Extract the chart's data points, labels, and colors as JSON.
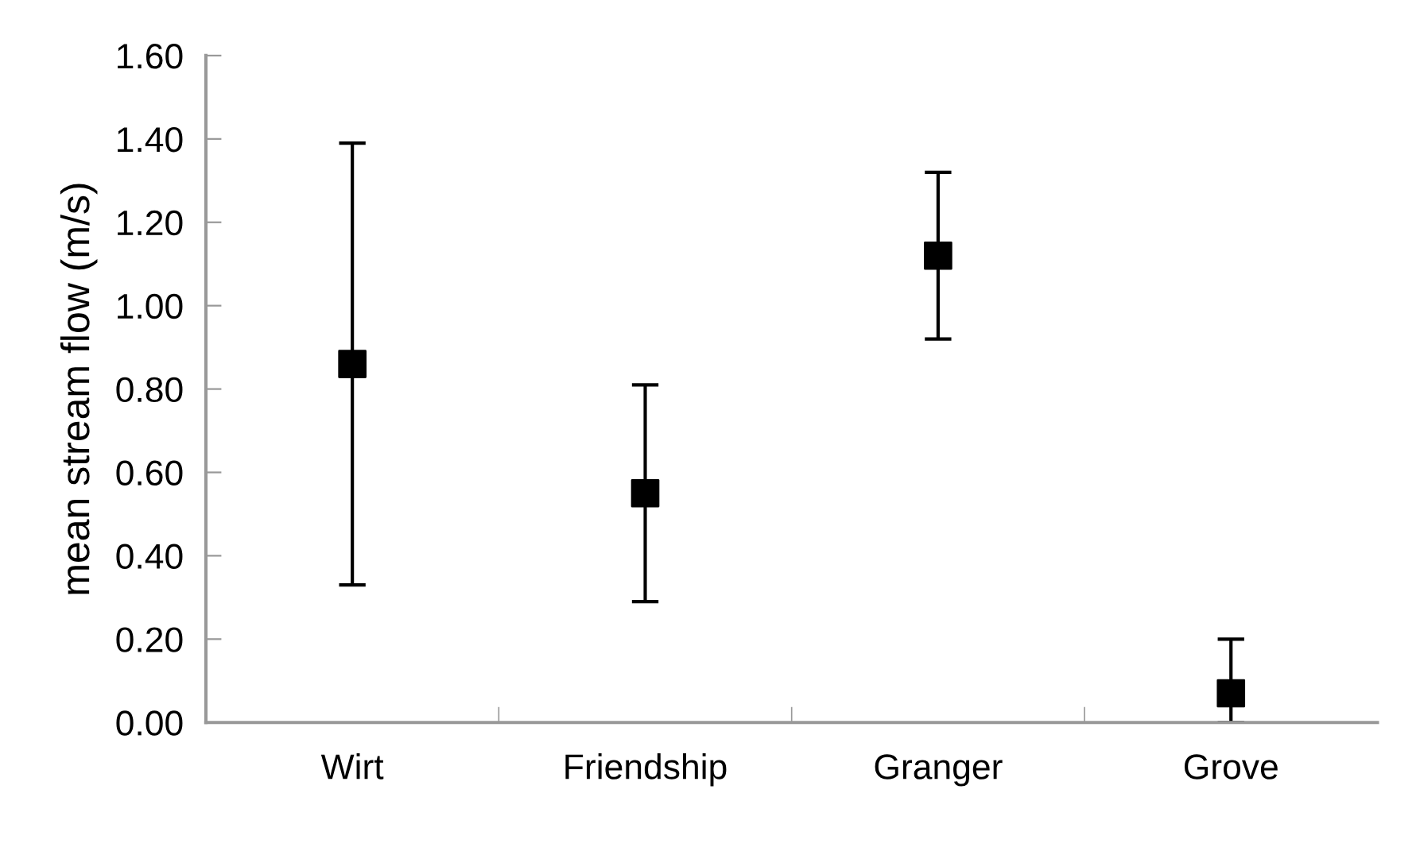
{
  "chart_data": {
    "type": "scatter",
    "ylabel": "mean stream flow (m/s)",
    "categories": [
      "Wirt",
      "Friendship",
      "Granger",
      "Grove"
    ],
    "series": [
      {
        "color": "#000000",
        "values": [
          0.86,
          0.55,
          1.12,
          0.07
        ],
        "errors": [
          0.53,
          0.26,
          0.2,
          [
            0,
            0.2
          ]
        ]
      }
    ],
    "ylim": [
      0,
      1.6
    ],
    "yticks": [
      {
        "value": 0,
        "label": "0.00"
      },
      {
        "value": 0.2,
        "label": "0.20"
      },
      {
        "value": 0.4,
        "label": "0.40"
      },
      {
        "value": 0.6,
        "label": "0.60"
      },
      {
        "value": 0.8,
        "label": "0.80"
      },
      {
        "value": 1.0,
        "label": "1.00"
      },
      {
        "value": 1.2,
        "label": "1.20"
      },
      {
        "value": 1.4,
        "label": "1.40"
      },
      {
        "value": 1.6,
        "label": "1.60"
      }
    ],
    "marker": "square",
    "grid": false,
    "legend": false
  }
}
